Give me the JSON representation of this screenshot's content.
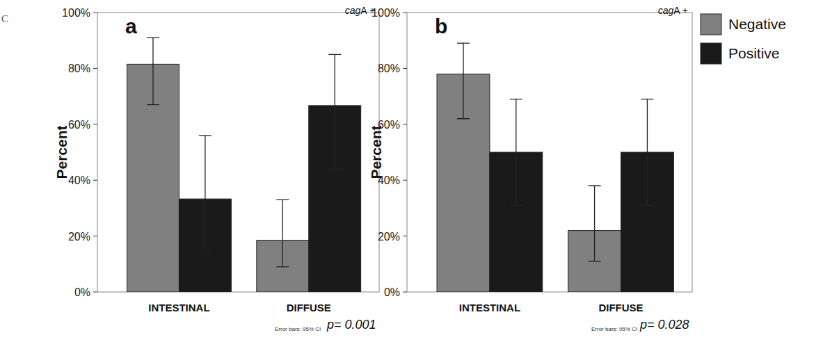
{
  "page_text": "C",
  "chart_data": [
    {
      "type": "bar",
      "title": "a",
      "label": "cagA +",
      "ylabel": "Percent",
      "categories": [
        "INTESTINAL",
        "DIFFUSE"
      ],
      "series": [
        {
          "name": "Negative",
          "color": "#808080",
          "values": [
            81.5,
            18.5
          ],
          "ci_low": [
            67,
            9
          ],
          "ci_high": [
            91,
            33
          ]
        },
        {
          "name": "Positive",
          "color": "#1a1a1a",
          "values": [
            33.3,
            66.7
          ],
          "ci_low": [
            15,
            44
          ],
          "ci_high": [
            56,
            85
          ]
        }
      ],
      "ylim": [
        0,
        100
      ],
      "yticks": [
        {
          "value": 0,
          "label": "0%"
        },
        {
          "value": 20,
          "label": "20%"
        },
        {
          "value": 40,
          "label": "40%"
        },
        {
          "value": 60,
          "label": "60%"
        },
        {
          "value": 80,
          "label": "80%"
        },
        {
          "value": 100,
          "label": "100%"
        }
      ],
      "error_note": "Error bars: 95% CI",
      "p_value_text": "p= 0.001"
    },
    {
      "type": "bar",
      "title": "b",
      "label": "cagA +",
      "ylabel": "Percent",
      "categories": [
        "INTESTINAL",
        "DIFFUSE"
      ],
      "series": [
        {
          "name": "Negative",
          "color": "#808080",
          "values": [
            78,
            22
          ],
          "ci_low": [
            62,
            11
          ],
          "ci_high": [
            89,
            38
          ]
        },
        {
          "name": "Positive",
          "color": "#1a1a1a",
          "values": [
            50,
            50
          ],
          "ci_low": [
            31,
            31
          ],
          "ci_high": [
            69,
            69
          ]
        }
      ],
      "ylim": [
        0,
        100
      ],
      "yticks": [
        {
          "value": 0,
          "label": "0%"
        },
        {
          "value": 20,
          "label": "20%"
        },
        {
          "value": 40,
          "label": "40%"
        },
        {
          "value": 60,
          "label": "60%"
        },
        {
          "value": 80,
          "label": "80%"
        },
        {
          "value": 100,
          "label": "100%"
        }
      ],
      "legend": "right",
      "error_note": "Error bars: 95% CI",
      "p_value_text": "p= 0.028"
    }
  ]
}
